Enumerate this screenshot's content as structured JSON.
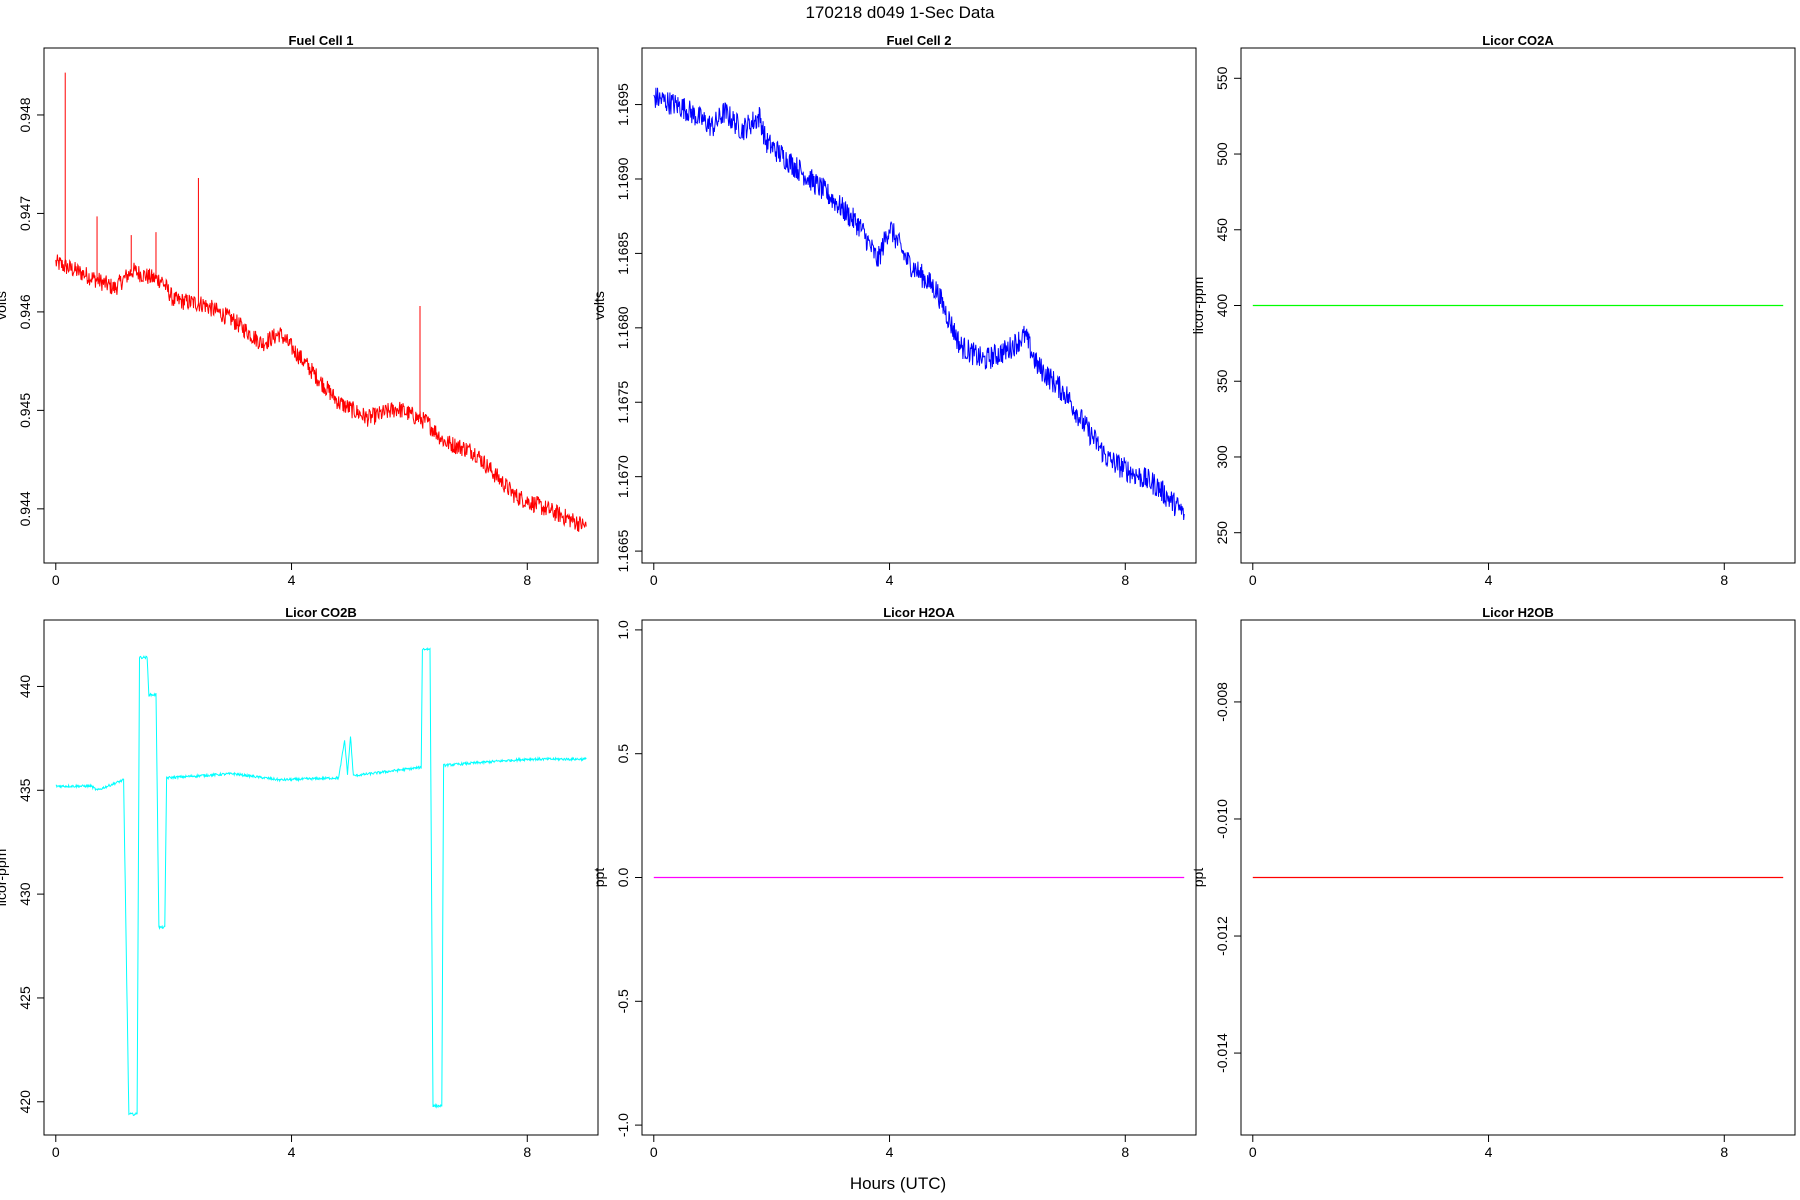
{
  "figure": {
    "title": "170218   d049   1-Sec Data",
    "xlabel": "Hours (UTC)"
  },
  "chart_data": [
    {
      "type": "line",
      "title": "Fuel Cell 1",
      "ylabel": "volts",
      "color": "#ff0000",
      "xlim": [
        -0.2,
        9.2
      ],
      "ylim": [
        0.94345,
        0.94868
      ],
      "xticks": [
        0,
        4,
        8
      ],
      "yticks": [
        0.944,
        0.945,
        0.946,
        0.947,
        0.948
      ],
      "ytick_labels": [
        "0.944",
        "0.945",
        "0.946",
        "0.947",
        "0.948"
      ],
      "trend": [
        [
          0,
          0.9465
        ],
        [
          0.5,
          0.94638
        ],
        [
          1.0,
          0.94624
        ],
        [
          1.3,
          0.94642
        ],
        [
          1.6,
          0.94635
        ],
        [
          1.8,
          0.94632
        ],
        [
          2.0,
          0.94612
        ],
        [
          2.5,
          0.94608
        ],
        [
          3.0,
          0.94592
        ],
        [
          3.5,
          0.94568
        ],
        [
          3.8,
          0.94578
        ],
        [
          4.2,
          0.9455
        ],
        [
          4.8,
          0.94508
        ],
        [
          5.3,
          0.94492
        ],
        [
          5.8,
          0.94502
        ],
        [
          6.3,
          0.94488
        ],
        [
          6.6,
          0.94468
        ],
        [
          7.1,
          0.94458
        ],
        [
          7.4,
          0.94438
        ],
        [
          7.8,
          0.94413
        ],
        [
          8.4,
          0.94398
        ],
        [
          9.0,
          0.94382
        ]
      ],
      "noise": 9e-05,
      "spikes": [
        [
          0.16,
          0.94843
        ],
        [
          0.7,
          0.94697
        ],
        [
          1.28,
          0.94678
        ],
        [
          1.7,
          0.94681
        ],
        [
          2.42,
          0.94736
        ],
        [
          6.18,
          0.94606
        ]
      ],
      "series": [
        {
          "x": [
            0,
            1,
            2,
            3,
            4,
            5,
            6,
            7,
            8,
            9
          ],
          "y": [
            0.9465,
            0.94624,
            0.94612,
            0.94592,
            0.94555,
            0.94498,
            0.94494,
            0.94462,
            0.94408,
            0.94382
          ]
        }
      ]
    },
    {
      "type": "line",
      "title": "Fuel Cell 2",
      "ylabel": "volts",
      "color": "#0000ff",
      "xlim": [
        -0.2,
        9.2
      ],
      "ylim": [
        1.16642,
        1.16988
      ],
      "xticks": [
        0,
        4,
        8
      ],
      "yticks": [
        1.1665,
        1.167,
        1.1675,
        1.168,
        1.1685,
        1.169,
        1.1695
      ],
      "ytick_labels": [
        "1.1665",
        "1.1670",
        "1.1675",
        "1.1680",
        "1.1685",
        "1.1690",
        "1.1695"
      ],
      "trend": [
        [
          0,
          1.16955
        ],
        [
          0.5,
          1.16948
        ],
        [
          1.0,
          1.16935
        ],
        [
          1.2,
          1.16945
        ],
        [
          1.5,
          1.16933
        ],
        [
          1.8,
          1.16942
        ],
        [
          1.9,
          1.16925
        ],
        [
          2.5,
          1.16905
        ],
        [
          3.0,
          1.16888
        ],
        [
          3.5,
          1.16868
        ],
        [
          3.8,
          1.16845
        ],
        [
          4.0,
          1.16868
        ],
        [
          4.3,
          1.16845
        ],
        [
          4.8,
          1.16825
        ],
        [
          5.2,
          1.16788
        ],
        [
          5.6,
          1.16778
        ],
        [
          6.0,
          1.16785
        ],
        [
          6.3,
          1.16795
        ],
        [
          6.5,
          1.16775
        ],
        [
          7.0,
          1.16755
        ],
        [
          7.3,
          1.16735
        ],
        [
          7.7,
          1.16712
        ],
        [
          8.0,
          1.16705
        ],
        [
          8.5,
          1.16695
        ],
        [
          9.0,
          1.16675
        ]
      ],
      "noise": 8e-05,
      "spikes": [],
      "series": [
        {
          "x": [
            0,
            1,
            2,
            3,
            4,
            5,
            6,
            7,
            8,
            9
          ],
          "y": [
            1.16955,
            1.16935,
            1.16922,
            1.16888,
            1.16868,
            1.16805,
            1.16785,
            1.16755,
            1.16705,
            1.16675
          ]
        }
      ]
    },
    {
      "type": "line",
      "title": "Licor CO2A",
      "ylabel": "licor-ppm",
      "color": "#00ff00",
      "xlim": [
        -0.2,
        9.2
      ],
      "ylim": [
        230,
        570
      ],
      "xticks": [
        0,
        4,
        8
      ],
      "yticks": [
        250,
        300,
        350,
        400,
        450,
        500,
        550
      ],
      "ytick_labels": [
        "250",
        "300",
        "350",
        "400",
        "450",
        "500",
        "550"
      ],
      "trend": [
        [
          0,
          400
        ],
        [
          9.0,
          400
        ]
      ],
      "noise": 0,
      "spikes": [],
      "series": [
        {
          "x": [
            0,
            9
          ],
          "y": [
            400,
            400
          ]
        }
      ]
    },
    {
      "type": "line",
      "title": "Licor CO2B",
      "ylabel": "licor-ppm",
      "color": "#00ffff",
      "xlim": [
        -0.2,
        9.2
      ],
      "ylim": [
        418.4,
        443.2
      ],
      "xticks": [
        0,
        4,
        8
      ],
      "yticks": [
        420,
        425,
        430,
        435,
        440
      ],
      "ytick_labels": [
        "420",
        "425",
        "430",
        "435",
        "440"
      ],
      "trend": [
        [
          0,
          435.2
        ],
        [
          0.6,
          435.2
        ],
        [
          0.7,
          435.0
        ],
        [
          1.15,
          435.5
        ],
        [
          1.24,
          419.4
        ],
        [
          1.38,
          419.4
        ],
        [
          1.42,
          441.4
        ],
        [
          1.55,
          441.4
        ],
        [
          1.58,
          439.6
        ],
        [
          1.7,
          439.6
        ],
        [
          1.75,
          428.4
        ],
        [
          1.85,
          428.4
        ],
        [
          1.88,
          435.6
        ],
        [
          3.0,
          435.8
        ],
        [
          3.8,
          435.5
        ],
        [
          4.8,
          435.6
        ],
        [
          4.9,
          437.4
        ],
        [
          4.95,
          435.8
        ],
        [
          5.0,
          437.6
        ],
        [
          5.05,
          435.7
        ],
        [
          5.9,
          436.0
        ],
        [
          6.2,
          436.1
        ],
        [
          6.22,
          441.8
        ],
        [
          6.35,
          441.8
        ],
        [
          6.4,
          419.8
        ],
        [
          6.55,
          419.8
        ],
        [
          6.58,
          436.2
        ],
        [
          7.5,
          436.4
        ],
        [
          8.0,
          436.5
        ],
        [
          9.0,
          436.5
        ]
      ],
      "noise": 0.06,
      "spikes": [],
      "series": [
        {
          "x": [
            0,
            1.3,
            1.5,
            1.65,
            1.8,
            3,
            5,
            6.3,
            6.5,
            9
          ],
          "y": [
            435.2,
            419.4,
            441.4,
            439.6,
            428.4,
            435.8,
            437.5,
            441.8,
            419.8,
            436.5
          ]
        }
      ]
    },
    {
      "type": "line",
      "title": "Licor H2OA",
      "ylabel": "ppt",
      "color": "#ff00ff",
      "xlim": [
        -0.2,
        9.2
      ],
      "ylim": [
        -1.04,
        1.04
      ],
      "xticks": [
        0,
        4,
        8
      ],
      "yticks": [
        -1.0,
        -0.5,
        0.0,
        0.5,
        1.0
      ],
      "ytick_labels": [
        "-1.0",
        "-0.5",
        "0.0",
        "0.5",
        "1.0"
      ],
      "trend": [
        [
          0,
          0.0
        ],
        [
          9.0,
          0.0
        ]
      ],
      "noise": 0,
      "spikes": [],
      "series": [
        {
          "x": [
            0,
            9
          ],
          "y": [
            0.0,
            0.0
          ]
        }
      ]
    },
    {
      "type": "line",
      "title": "Licor H2OB",
      "ylabel": "ppt",
      "color": "#ff0000",
      "xlim": [
        -0.2,
        9.2
      ],
      "ylim": [
        -0.0154,
        -0.0066
      ],
      "xticks": [
        0,
        4,
        8
      ],
      "yticks": [
        -0.014,
        -0.012,
        -0.01,
        -0.008
      ],
      "ytick_labels": [
        "-0.014",
        "-0.012",
        "-0.010",
        "-0.008"
      ],
      "trend": [
        [
          0,
          -0.011
        ],
        [
          9.0,
          -0.011
        ]
      ],
      "noise": 0,
      "spikes": [],
      "series": [
        {
          "x": [
            0,
            9
          ],
          "y": [
            -0.011,
            -0.011
          ]
        }
      ]
    }
  ]
}
